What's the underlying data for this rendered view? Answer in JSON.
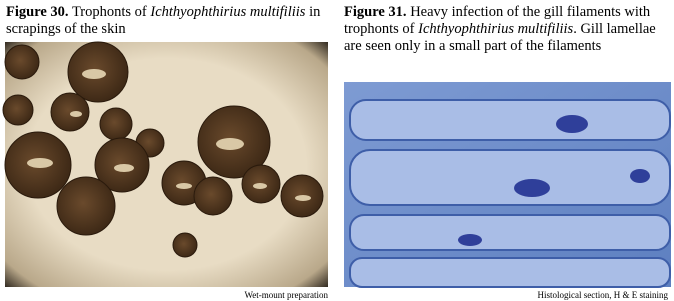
{
  "figures": [
    {
      "label": "Figure 30.",
      "caption_start": "Trophonts of ",
      "species": "Ichthyophthirius multifiliis",
      "caption_end": " in scrapings of the skin",
      "note": "Wet-mount preparation"
    },
    {
      "label": "Figure 31.",
      "caption_start": "Heavy infection of the gill filaments with trophonts of ",
      "species": "Ichthyophthirius multifiliis",
      "caption_end": ". Gill lamellae are seen only in a small part of the filaments",
      "note": "Histological section, H & E staining"
    }
  ]
}
